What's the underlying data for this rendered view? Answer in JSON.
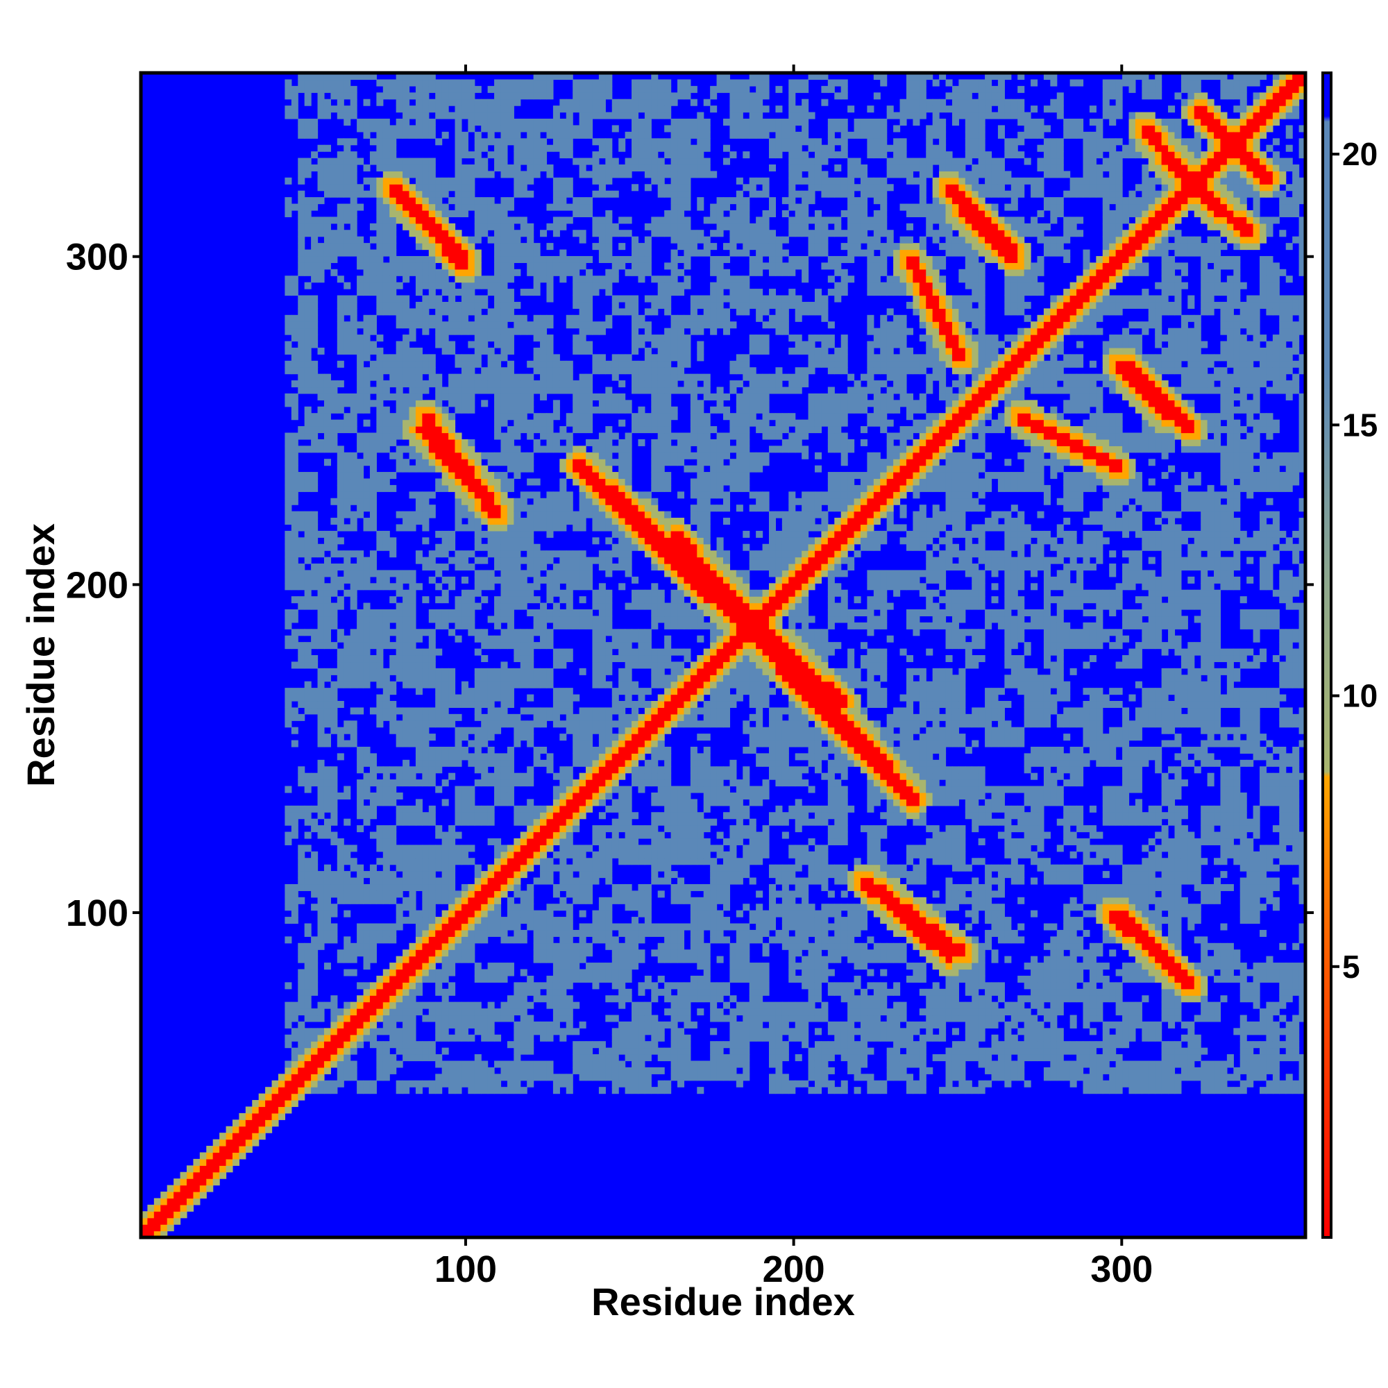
{
  "chart_data": {
    "type": "heatmap",
    "title": "",
    "xlabel": "Residue index",
    "ylabel": "Residue index",
    "xlim": [
      1,
      356
    ],
    "ylim": [
      1,
      356
    ],
    "x_ticks": [
      100,
      200,
      300
    ],
    "y_ticks": [
      100,
      200,
      300
    ],
    "colorbar": {
      "ticks": [
        5,
        10,
        15,
        20
      ],
      "range": [
        0,
        21.5
      ],
      "stops": [
        {
          "value": 0,
          "color": "#ff0000"
        },
        {
          "value": 5,
          "color": "#ff5a00"
        },
        {
          "value": 8.5,
          "color": "#ffa500"
        },
        {
          "value": 8.6,
          "color": "#a8b56e"
        },
        {
          "value": 12,
          "color": "#8fa88c"
        },
        {
          "value": 16,
          "color": "#5b88b8"
        },
        {
          "value": 20.6,
          "color": "#5b88b8"
        },
        {
          "value": 20.7,
          "color": "#0000ff"
        },
        {
          "value": 21.5,
          "color": "#0000ff"
        }
      ]
    },
    "colors": {
      "close_contact": "#ff0000",
      "contact": "#ffa500",
      "medium": "#5b88b8",
      "far": "#0000ff"
    },
    "contact_features": [
      {
        "kind": "diagonal",
        "from": [
          1,
          1
        ],
        "to": [
          356,
          356
        ]
      },
      {
        "kind": "antiparallel",
        "from": [
          78,
          322
        ],
        "to": [
          100,
          300
        ]
      },
      {
        "kind": "antiparallel",
        "from": [
          88,
          252
        ],
        "to": [
          110,
          223
        ]
      },
      {
        "kind": "antiparallel",
        "from": [
          135,
          237
        ],
        "to": [
          210,
          163
        ]
      },
      {
        "kind": "antiparallel",
        "from": [
          165,
          215
        ],
        "to": [
          235,
          138
        ]
      },
      {
        "kind": "antiparallel",
        "from": [
          222,
          110
        ],
        "to": [
          248,
          87
        ]
      },
      {
        "kind": "antiparallel",
        "from": [
          298,
          100
        ],
        "to": [
          322,
          78
        ]
      },
      {
        "kind": "antiparallel",
        "from": [
          248,
          322
        ],
        "to": [
          268,
          302
        ]
      },
      {
        "kind": "antiparallel",
        "from": [
          300,
          268
        ],
        "to": [
          315,
          252
        ]
      },
      {
        "kind": "antiparallel",
        "from": [
          315,
          330
        ],
        "to": [
          340,
          308
        ]
      },
      {
        "kind": "parallel",
        "from": [
          270,
          252
        ],
        "to": [
          300,
          236
        ]
      },
      {
        "kind": "parallel",
        "from": [
          330,
          340
        ],
        "to": [
          345,
          325
        ]
      }
    ]
  }
}
